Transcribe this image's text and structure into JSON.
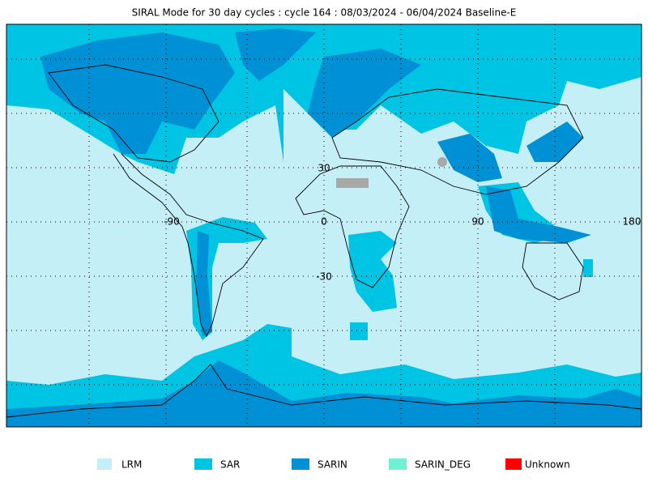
{
  "header": {
    "title": "SIRAL Mode for 30 day cycles : cycle 164 : 08/03/2024 - 06/04/2024 Baseline-E"
  },
  "grid_labels": {
    "lon": [
      "-90",
      "0",
      "90",
      "180"
    ],
    "lat": [
      "30",
      "0",
      "-30"
    ]
  },
  "legend": {
    "items": [
      {
        "label": "LRM",
        "color": "#c4eff7"
      },
      {
        "label": "SAR",
        "color": "#00c4e4"
      },
      {
        "label": "SARIN",
        "color": "#0090d6"
      },
      {
        "label": "SARIN_DEG",
        "color": "#70f2d2"
      },
      {
        "label": "Unknown",
        "color": "#ff0000"
      }
    ]
  }
}
